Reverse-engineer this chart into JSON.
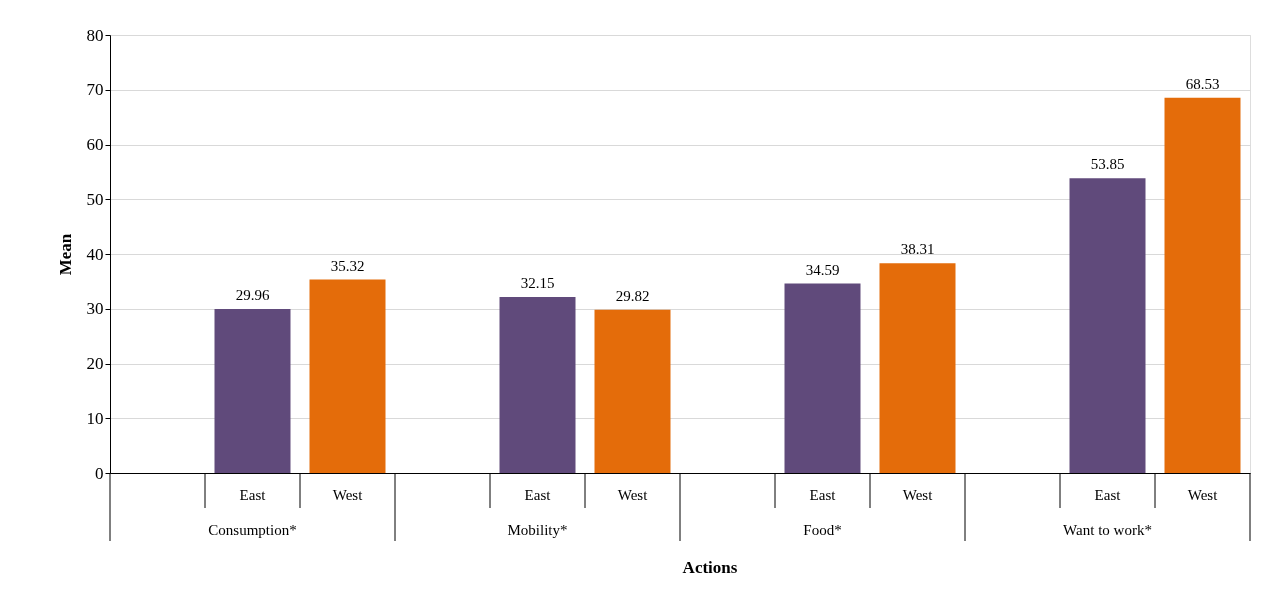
{
  "chart_data": {
    "type": "bar",
    "xlabel": "Actions",
    "ylabel": "Mean",
    "categories": [
      "Consumption*",
      "Mobility*",
      "Food*",
      "Want to work*"
    ],
    "series": [
      {
        "name": "East",
        "color": "#604a7b",
        "values": [
          29.96,
          32.15,
          34.59,
          53.85
        ]
      },
      {
        "name": "West",
        "color": "#e46c0a",
        "values": [
          35.32,
          29.82,
          38.31,
          68.53
        ]
      }
    ],
    "ylim": [
      0,
      80
    ],
    "yticks": [
      0,
      10,
      20,
      30,
      40,
      50,
      60,
      70,
      80
    ],
    "grid": "y",
    "data_labels": true
  }
}
